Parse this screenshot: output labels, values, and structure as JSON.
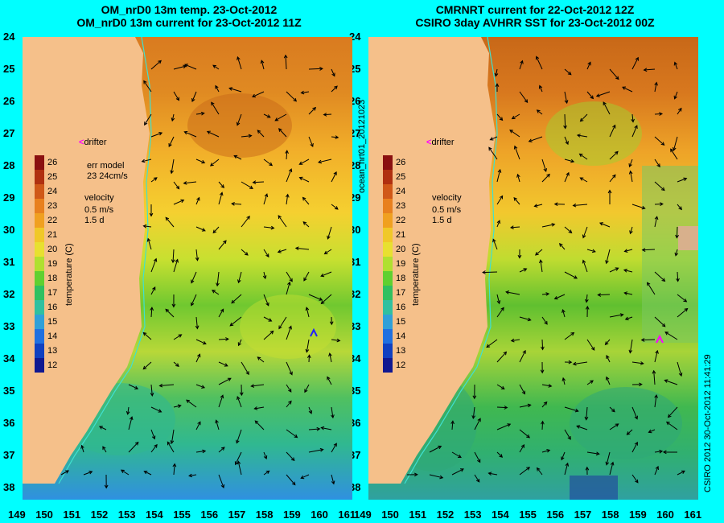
{
  "left": {
    "title1": "OM_nrD0 13m temp. 23-Oct-2012",
    "title2": "OM_nrD0 13m current for 23-Oct-2012 11Z",
    "drifter": "drifter",
    "err_label": "err model",
    "err_value": "23 24cm/s",
    "velocity_label": "velocity",
    "velocity_scale": "0.5 m/s",
    "velocity_time": "1.5 d",
    "cbar_title": "temperature (C)"
  },
  "right": {
    "title1": "CMRNRT current for 22-Oct-2012 12Z",
    "title2": "CSIRO 3day AVHRR SST for 23-Oct-2012 00Z",
    "drifter": "drifter",
    "velocity_label": "velocity",
    "velocity_scale": "0.5 m/s",
    "velocity_time": "1.5 d",
    "cbar_title": "temperature (C)"
  },
  "side_text": "ocean_nrt01_20121023",
  "stamp": "CSIRO 2012   30-Oct-2012 11:41:29",
  "y_ticks": [
    "24",
    "25",
    "26",
    "27",
    "28",
    "29",
    "30",
    "31",
    "32",
    "33",
    "34",
    "35",
    "36",
    "37",
    "38"
  ],
  "x_ticks": [
    "149",
    "150",
    "151",
    "152",
    "153",
    "154",
    "155",
    "156",
    "157",
    "158",
    "159",
    "160",
    "161"
  ],
  "colorbar_ticks": [
    "26",
    "25",
    "24",
    "23",
    "22",
    "21",
    "20",
    "19",
    "18",
    "17",
    "16",
    "15",
    "14",
    "13",
    "12"
  ],
  "colors": {
    "background": "#00ffff",
    "land": "#f5c08a",
    "drifter": "#ff00ff",
    "coast_line": "#40e0d0"
  }
}
